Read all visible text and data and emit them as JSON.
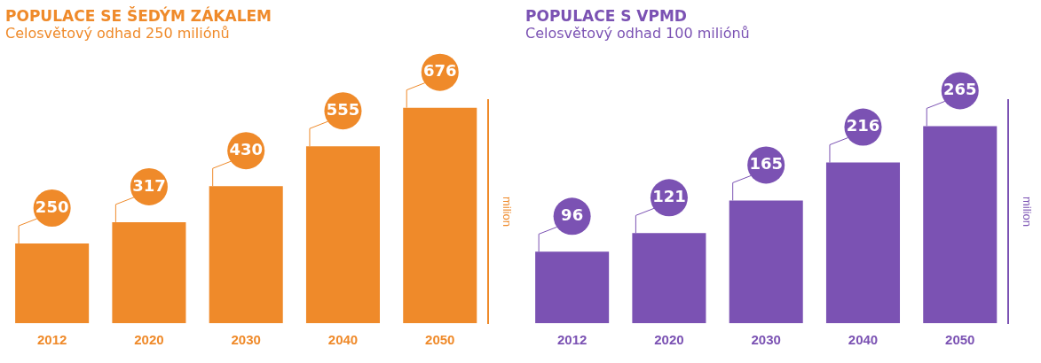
{
  "chart_data": [
    {
      "type": "bar",
      "title": "POPULACE SE ŠEDÝM ZÁKALEM",
      "subtitle": "Celosvětový odhad 250 miliónů",
      "ylabel": "milion",
      "categories": [
        "2012",
        "2020",
        "2030",
        "2040",
        "2050"
      ],
      "values": [
        250,
        317,
        430,
        555,
        676
      ],
      "color": "#ef8a2a",
      "data_labels": true,
      "grid": false,
      "legend": false
    },
    {
      "type": "bar",
      "title": "POPULACE S VPMD",
      "subtitle": "Celosvětový odhad 100 miliónů",
      "ylabel": "milion",
      "categories": [
        "2012",
        "2020",
        "2030",
        "2040",
        "2050"
      ],
      "values": [
        96,
        121,
        165,
        216,
        265
      ],
      "color": "#7b52b3",
      "data_labels": true,
      "grid": false,
      "legend": false
    }
  ]
}
